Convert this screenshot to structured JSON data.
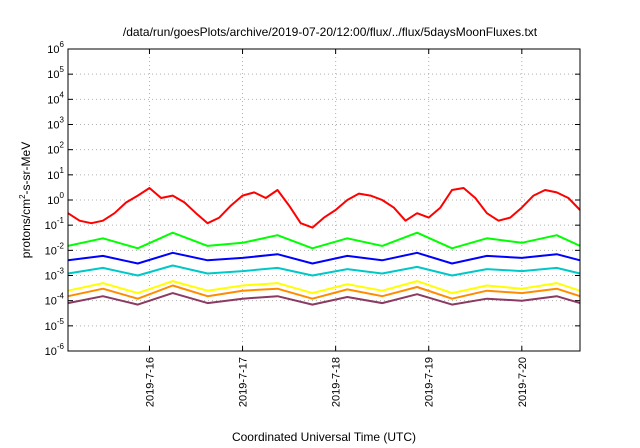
{
  "chart_data": {
    "type": "line",
    "title": "/data/run/goesPlots/archive/2019-07-20/12:00/flux/../flux/5daysMoonFluxes.txt",
    "xlabel": "Coordinated Universal Time (UTC)",
    "ylabel": {
      "base": "protons/cm",
      "sup": "2",
      "rest": "-s-sr-MeV"
    },
    "yscale": "log",
    "ylim": [
      1e-06,
      1000000.0
    ],
    "ytick_labels": [
      {
        "base": "10",
        "exp": "-6"
      },
      {
        "base": "10",
        "exp": "-5"
      },
      {
        "base": "10",
        "exp": "-4"
      },
      {
        "base": "10",
        "exp": "-3"
      },
      {
        "base": "10",
        "exp": "-2"
      },
      {
        "base": "10",
        "exp": "-1"
      },
      {
        "base": "10",
        "exp": "0"
      },
      {
        "base": "10",
        "exp": "1"
      },
      {
        "base": "10",
        "exp": "2"
      },
      {
        "base": "10",
        "exp": "3"
      },
      {
        "base": "10",
        "exp": "4"
      },
      {
        "base": "10",
        "exp": "5"
      },
      {
        "base": "10",
        "exp": "6"
      }
    ],
    "xlim": [
      "2019-07-15T03:00",
      "2019-07-20T15:00"
    ],
    "x_ticks": [
      "2019-7-16",
      "2019-7-17",
      "2019-7-18",
      "2019-7-19",
      "2019-7-20"
    ],
    "grid": true,
    "series": [
      {
        "color": "#ff0000",
        "x": [
          "2019-07-15T03:00",
          "2019-07-15T06:00",
          "2019-07-15T09:00",
          "2019-07-15T12:00",
          "2019-07-15T15:00",
          "2019-07-15T18:00",
          "2019-07-15T21:00",
          "2019-07-16T00:00",
          "2019-07-16T03:00",
          "2019-07-16T06:00",
          "2019-07-16T09:00",
          "2019-07-16T12:00",
          "2019-07-16T15:00",
          "2019-07-16T18:00",
          "2019-07-16T21:00",
          "2019-07-17T00:00",
          "2019-07-17T03:00",
          "2019-07-17T06:00",
          "2019-07-17T09:00",
          "2019-07-17T12:00",
          "2019-07-17T15:00",
          "2019-07-17T18:00",
          "2019-07-17T21:00",
          "2019-07-18T00:00",
          "2019-07-18T03:00",
          "2019-07-18T06:00",
          "2019-07-18T09:00",
          "2019-07-18T12:00",
          "2019-07-18T15:00",
          "2019-07-18T18:00",
          "2019-07-18T21:00",
          "2019-07-19T00:00",
          "2019-07-19T03:00",
          "2019-07-19T06:00",
          "2019-07-19T09:00",
          "2019-07-19T12:00",
          "2019-07-19T15:00",
          "2019-07-19T18:00",
          "2019-07-19T21:00",
          "2019-07-20T00:00",
          "2019-07-20T03:00",
          "2019-07-20T06:00",
          "2019-07-20T09:00",
          "2019-07-20T12:00",
          "2019-07-20T15:00"
        ],
        "values": [
          0.3,
          0.15,
          0.12,
          0.15,
          0.3,
          0.8,
          1.5,
          3.0,
          1.2,
          1.5,
          0.8,
          0.3,
          0.12,
          0.2,
          0.6,
          1.5,
          2.0,
          1.2,
          2.5,
          0.6,
          0.12,
          0.08,
          0.2,
          0.4,
          1.0,
          1.8,
          1.5,
          1.0,
          0.5,
          0.15,
          0.3,
          0.2,
          0.5,
          2.5,
          3.0,
          1.2,
          0.3,
          0.15,
          0.2,
          0.5,
          1.5,
          2.5,
          2.0,
          1.2,
          0.4
        ]
      },
      {
        "color": "#00ff00",
        "x": [
          "2019-07-15T03:00",
          "2019-07-15T12:00",
          "2019-07-15T21:00",
          "2019-07-16T06:00",
          "2019-07-16T15:00",
          "2019-07-17T00:00",
          "2019-07-17T09:00",
          "2019-07-17T18:00",
          "2019-07-18T03:00",
          "2019-07-18T12:00",
          "2019-07-18T21:00",
          "2019-07-19T06:00",
          "2019-07-19T15:00",
          "2019-07-20T00:00",
          "2019-07-20T09:00",
          "2019-07-20T15:00"
        ],
        "values": [
          0.015,
          0.03,
          0.012,
          0.05,
          0.015,
          0.02,
          0.04,
          0.012,
          0.03,
          0.015,
          0.05,
          0.012,
          0.03,
          0.02,
          0.04,
          0.015
        ]
      },
      {
        "color": "#0000ff",
        "x": [
          "2019-07-15T03:00",
          "2019-07-15T12:00",
          "2019-07-15T21:00",
          "2019-07-16T06:00",
          "2019-07-16T15:00",
          "2019-07-17T00:00",
          "2019-07-17T09:00",
          "2019-07-17T18:00",
          "2019-07-18T03:00",
          "2019-07-18T12:00",
          "2019-07-18T21:00",
          "2019-07-19T06:00",
          "2019-07-19T15:00",
          "2019-07-20T00:00",
          "2019-07-20T09:00",
          "2019-07-20T15:00"
        ],
        "values": [
          0.004,
          0.006,
          0.003,
          0.008,
          0.004,
          0.005,
          0.007,
          0.003,
          0.006,
          0.004,
          0.008,
          0.003,
          0.006,
          0.005,
          0.007,
          0.004
        ]
      },
      {
        "color": "#00c8c8",
        "x": [
          "2019-07-15T03:00",
          "2019-07-15T12:00",
          "2019-07-15T21:00",
          "2019-07-16T06:00",
          "2019-07-16T15:00",
          "2019-07-17T00:00",
          "2019-07-17T09:00",
          "2019-07-17T18:00",
          "2019-07-18T03:00",
          "2019-07-18T12:00",
          "2019-07-18T21:00",
          "2019-07-19T06:00",
          "2019-07-19T15:00",
          "2019-07-20T00:00",
          "2019-07-20T09:00",
          "2019-07-20T15:00"
        ],
        "values": [
          0.0012,
          0.002,
          0.001,
          0.0025,
          0.0012,
          0.0015,
          0.002,
          0.001,
          0.0018,
          0.0012,
          0.0022,
          0.001,
          0.0018,
          0.0015,
          0.002,
          0.0012
        ]
      },
      {
        "color": "#ffff00",
        "x": [
          "2019-07-15T03:00",
          "2019-07-15T12:00",
          "2019-07-15T21:00",
          "2019-07-16T06:00",
          "2019-07-16T15:00",
          "2019-07-17T00:00",
          "2019-07-17T09:00",
          "2019-07-17T18:00",
          "2019-07-18T03:00",
          "2019-07-18T12:00",
          "2019-07-18T21:00",
          "2019-07-19T06:00",
          "2019-07-19T15:00",
          "2019-07-20T00:00",
          "2019-07-20T09:00",
          "2019-07-20T15:00"
        ],
        "values": [
          0.00025,
          0.0005,
          0.0002,
          0.0006,
          0.00025,
          0.0004,
          0.0005,
          0.0002,
          0.00045,
          0.00025,
          0.0006,
          0.0002,
          0.0004,
          0.0003,
          0.0005,
          0.00025
        ]
      },
      {
        "color": "#ff8c00",
        "x": [
          "2019-07-15T03:00",
          "2019-07-15T12:00",
          "2019-07-15T21:00",
          "2019-07-16T06:00",
          "2019-07-16T15:00",
          "2019-07-17T00:00",
          "2019-07-17T09:00",
          "2019-07-17T18:00",
          "2019-07-18T03:00",
          "2019-07-18T12:00",
          "2019-07-18T21:00",
          "2019-07-19T06:00",
          "2019-07-19T15:00",
          "2019-07-20T00:00",
          "2019-07-20T09:00",
          "2019-07-20T15:00"
        ],
        "values": [
          0.00015,
          0.0003,
          0.00012,
          0.0004,
          0.00015,
          0.00025,
          0.0003,
          0.00012,
          0.00028,
          0.00015,
          0.00035,
          0.00012,
          0.00025,
          0.0002,
          0.0003,
          0.00015
        ]
      },
      {
        "color": "#8b3a62",
        "x": [
          "2019-07-15T03:00",
          "2019-07-15T12:00",
          "2019-07-15T21:00",
          "2019-07-16T06:00",
          "2019-07-16T15:00",
          "2019-07-17T00:00",
          "2019-07-17T09:00",
          "2019-07-17T18:00",
          "2019-07-18T03:00",
          "2019-07-18T12:00",
          "2019-07-18T21:00",
          "2019-07-19T06:00",
          "2019-07-19T15:00",
          "2019-07-20T00:00",
          "2019-07-20T09:00",
          "2019-07-20T15:00"
        ],
        "values": [
          8e-05,
          0.00015,
          7e-05,
          0.0002,
          8e-05,
          0.00012,
          0.00015,
          7e-05,
          0.00014,
          8e-05,
          0.00018,
          7e-05,
          0.00012,
          0.0001,
          0.00015,
          8e-05
        ]
      }
    ]
  }
}
